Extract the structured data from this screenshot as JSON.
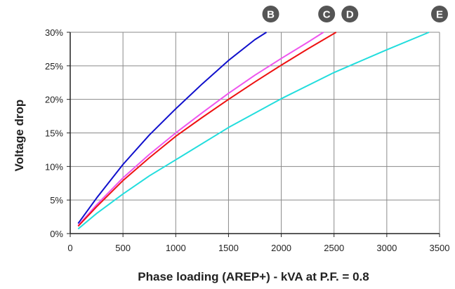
{
  "chart_data": {
    "type": "line",
    "title": "",
    "xlabel": "Phase loading (AREP+) - kVA at P.F. = 0.8",
    "ylabel": "Voltage drop",
    "xlim": [
      0,
      3500
    ],
    "ylim": [
      0,
      30
    ],
    "x_ticks": [
      0,
      500,
      1000,
      1500,
      2000,
      2500,
      3000,
      3500
    ],
    "y_ticks": [
      0,
      5,
      10,
      15,
      20,
      25,
      30
    ],
    "x_tick_labels": [
      "0",
      "500",
      "1000",
      "1500",
      "2000",
      "2500",
      "3000",
      "3500"
    ],
    "y_tick_labels": [
      "0%",
      "5%",
      "10%",
      "15%",
      "20%",
      "25%",
      "30%"
    ],
    "grid": true,
    "series": [
      {
        "name": "B",
        "color": "#1010cc",
        "x": [
          75,
          250,
          500,
          750,
          1000,
          1250,
          1500,
          1750,
          1860
        ],
        "y": [
          1.5,
          5.3,
          10.3,
          14.7,
          18.6,
          22.3,
          25.8,
          28.9,
          30
        ]
      },
      {
        "name": "C",
        "color": "#ee55ee",
        "x": [
          75,
          250,
          500,
          750,
          1000,
          1250,
          1500,
          1750,
          2000,
          2250,
          2400
        ],
        "y": [
          1.2,
          4.3,
          8.3,
          11.8,
          15.0,
          18.0,
          20.9,
          23.6,
          26.1,
          28.5,
          30
        ]
      },
      {
        "name": "D",
        "color": "#ee1111",
        "x": [
          75,
          250,
          500,
          750,
          1000,
          1250,
          1500,
          1750,
          2000,
          2250,
          2520
        ],
        "y": [
          1.1,
          4.0,
          7.9,
          11.3,
          14.5,
          17.3,
          20.0,
          22.6,
          25.1,
          27.5,
          30
        ]
      },
      {
        "name": "E",
        "color": "#22dddd",
        "x": [
          75,
          250,
          500,
          750,
          1000,
          1500,
          2000,
          2500,
          3000,
          3400
        ],
        "y": [
          0.7,
          3.0,
          5.9,
          8.6,
          11.0,
          15.8,
          20.1,
          24.0,
          27.4,
          30
        ]
      }
    ],
    "badges": [
      {
        "label": "B",
        "x": 1900
      },
      {
        "label": "C",
        "x": 2430
      },
      {
        "label": "D",
        "x": 2650
      },
      {
        "label": "E",
        "x": 3500
      }
    ],
    "badge_color": "#555555"
  }
}
